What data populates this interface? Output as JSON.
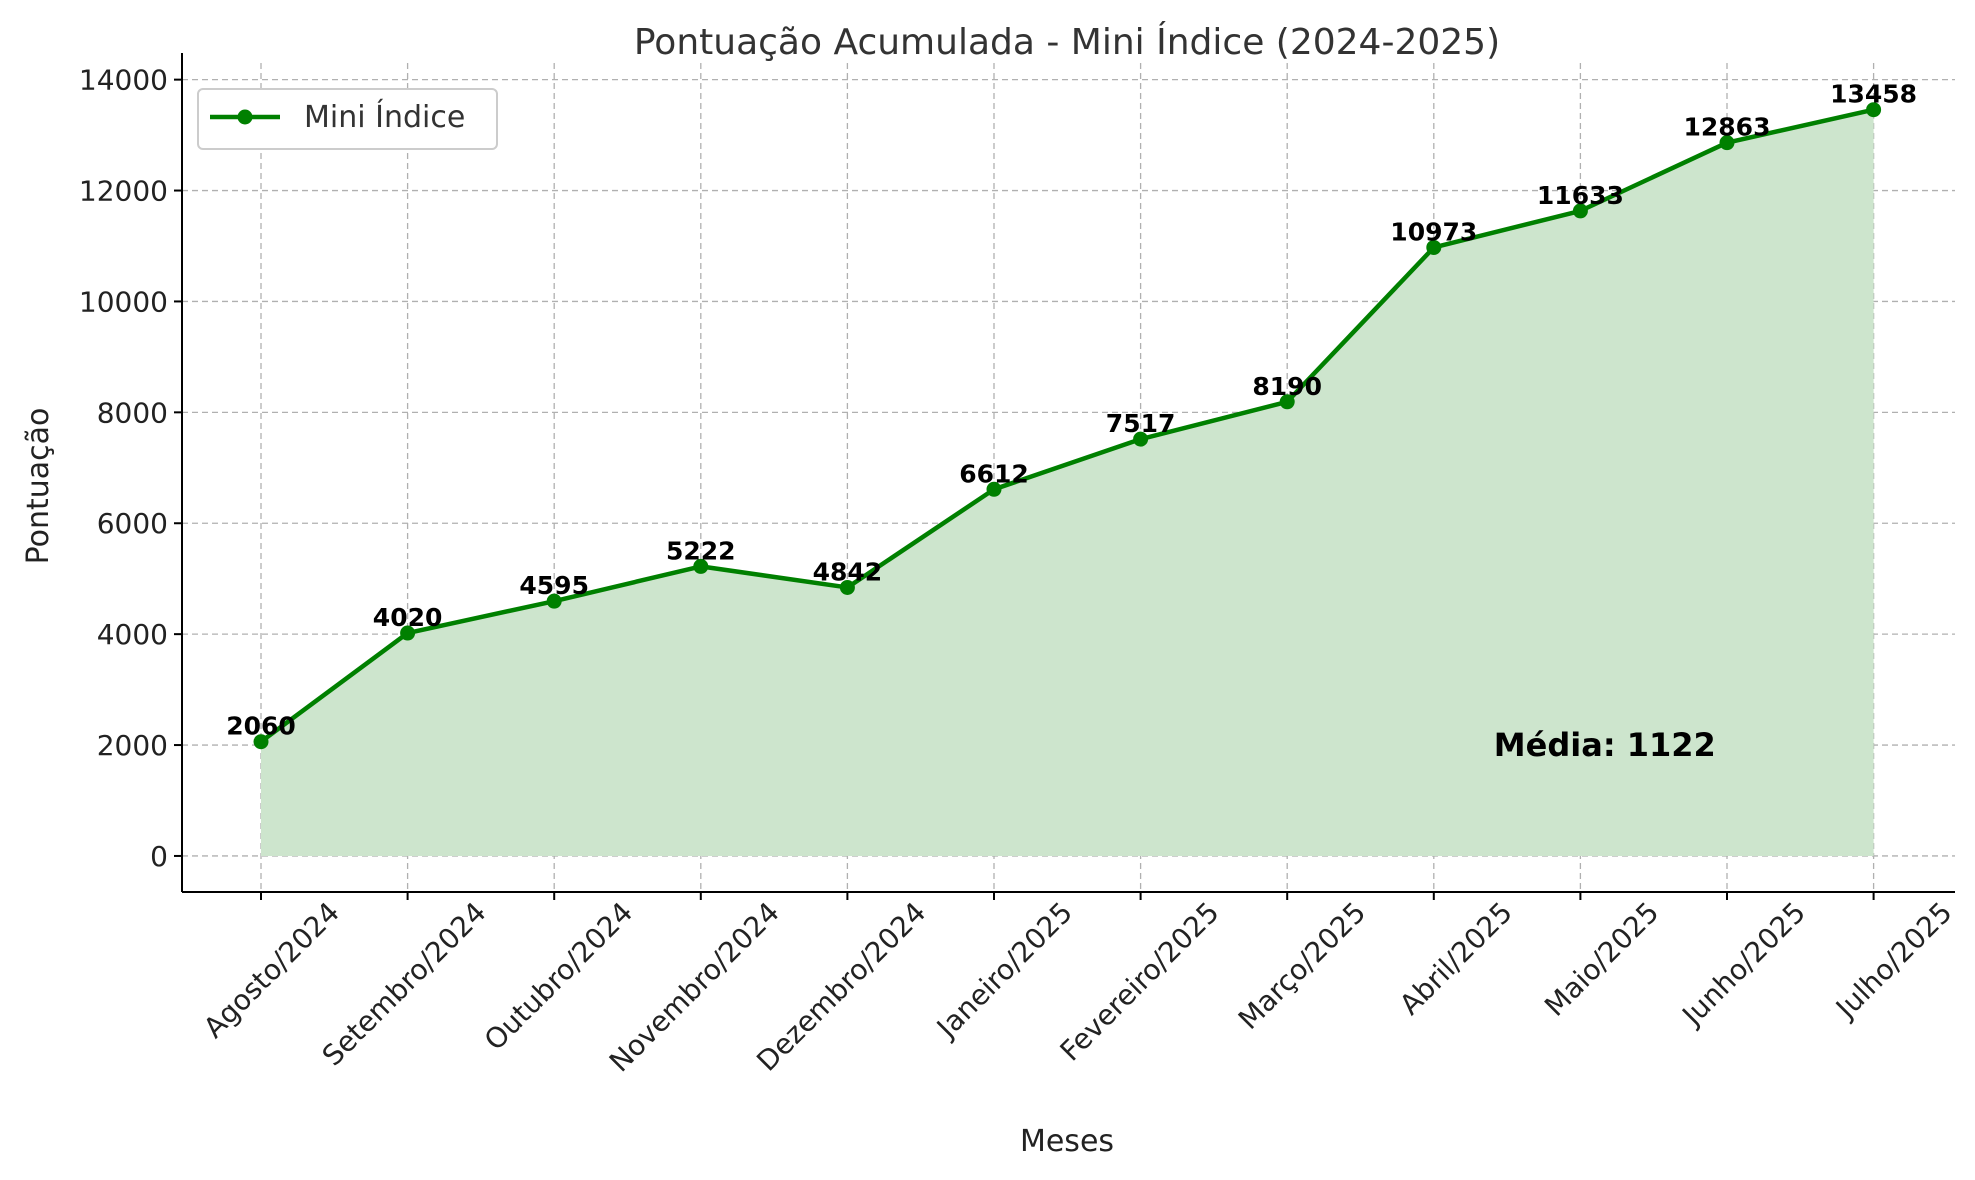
{
  "chart_data": {
    "type": "line",
    "title": "Pontuação Acumulada - Mini Índice (2024-2025)",
    "xlabel": "Meses",
    "ylabel": "Pontuação",
    "categories": [
      "Agosto/2024",
      "Setembro/2024",
      "Outubro/2024",
      "Novembro/2024",
      "Dezembro/2024",
      "Janeiro/2025",
      "Fevereiro/2025",
      "Março/2025",
      "Abril/2025",
      "Maio/2025",
      "Junho/2025",
      "Julho/2025"
    ],
    "series": [
      {
        "name": "Mini Índice",
        "values": [
          2060,
          4020,
          4595,
          5222,
          4842,
          6612,
          7517,
          8190,
          10973,
          11633,
          12863,
          13458
        ],
        "data_labels": [
          "2060",
          "4020",
          "4595",
          "5222",
          "4842",
          "6612",
          "7517",
          "8190",
          "10973",
          "11633",
          "12863",
          "13458"
        ],
        "color": "#008000",
        "fill_color": "#cde5cd",
        "marker": "circle"
      }
    ],
    "yticks": [
      0,
      2000,
      4000,
      6000,
      8000,
      10000,
      12000,
      14000
    ],
    "ytick_labels": [
      "0",
      "2000",
      "4000",
      "6000",
      "8000",
      "10000",
      "12000",
      "14000"
    ],
    "ylim": [
      -650,
      14300
    ],
    "grid": true,
    "legend": {
      "placement": "top-left",
      "entries": [
        "Mini Índice"
      ]
    },
    "annotation": "Média: 1122",
    "annotation_x_category": "Abril/2025",
    "annotation_y": 2000
  }
}
